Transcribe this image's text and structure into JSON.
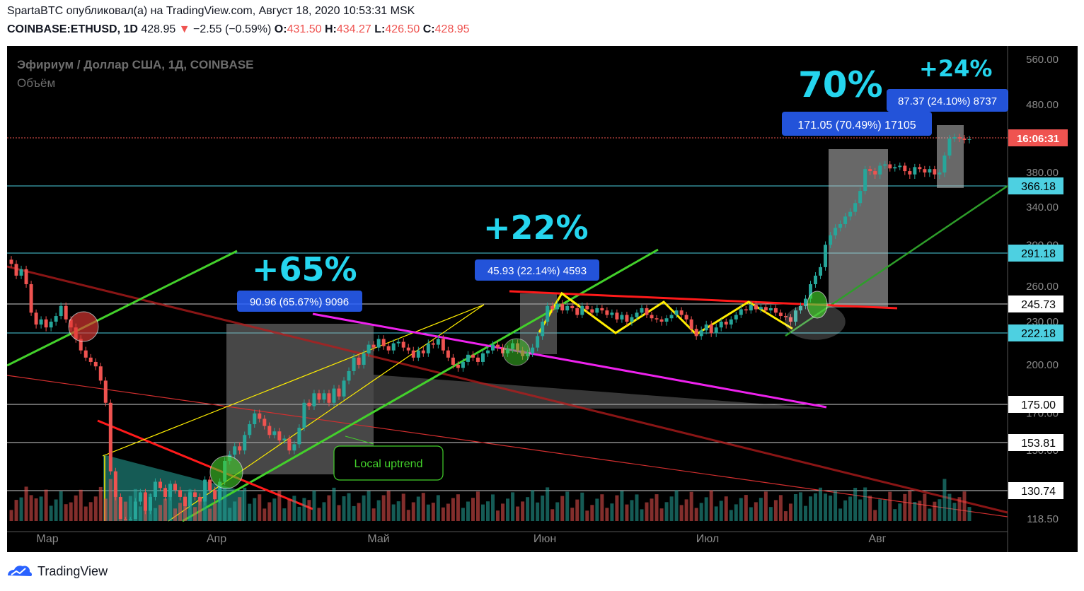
{
  "header": {
    "line1": "SpartaBTC опубликовал(а) на TradingView.com, Август 18, 2020 10:53:31 MSK",
    "symbol": "COINBASE:ETHUSD, 1D",
    "last": "428.95",
    "arrow": "▼",
    "change": "−2.55 (−0.59%)",
    "o_label": "O:",
    "o_value": "431.50",
    "h_label": "H:",
    "h_value": "434.27",
    "l_label": "L:",
    "l_value": "426.50",
    "c_label": "C:",
    "c_value": "428.95"
  },
  "legend": {
    "title": "Эфириум / Доллар США, 1Д, COINBASE",
    "volume": "Объём"
  },
  "footer": {
    "brand": "TradingView"
  },
  "colors": {
    "up": "#26a69a",
    "down": "#ef5350",
    "background": "#000000",
    "label_box": "#2962ff"
  },
  "chart_data": {
    "type": "candlestick",
    "x_labels": [
      "Мар",
      "Апр",
      "Май",
      "Июн",
      "Июл",
      "Авг"
    ],
    "y_ticks": [
      560.0,
      480.0,
      380.0,
      340.0,
      300.0,
      260.0,
      230.0,
      200.0,
      170.0,
      150.0,
      118.5
    ],
    "horizontal_levels": [
      "366.18",
      "291.18",
      "245.73",
      "222.18",
      "175.00",
      "153.81",
      "130.74"
    ],
    "countdown": "16:06:31",
    "last_price": 428.95,
    "big_labels": [
      "+65%",
      "+22%",
      "70%",
      "+24%"
    ],
    "measure_labels": [
      "90.96 (65.67%) 9096",
      "45.93 (22.14%) 4593",
      "171.05 (70.49%) 17105",
      "87.37 (24.10%) 8737"
    ],
    "annotation": "Local uptrend",
    "candle_closes": [
      281,
      270,
      276,
      262,
      238,
      228,
      232,
      226,
      230,
      235,
      244,
      232,
      226,
      218,
      210,
      205,
      202,
      199,
      190,
      176,
      140,
      128,
      118,
      112,
      118,
      126,
      130,
      122,
      128,
      135,
      132,
      128,
      134,
      131,
      128,
      124,
      130,
      128,
      126,
      136,
      131,
      127,
      135,
      145,
      148,
      152,
      150,
      158,
      164,
      170,
      167,
      163,
      158,
      160,
      155,
      156,
      150,
      153,
      162,
      176,
      174,
      182,
      178,
      182,
      176,
      185,
      180,
      190,
      196,
      205,
      200,
      208,
      214,
      212,
      218,
      213,
      210,
      215,
      216,
      212,
      210,
      205,
      210,
      208,
      215,
      214,
      218,
      210,
      205,
      200,
      198,
      202,
      207,
      205,
      202,
      208,
      210,
      214,
      212,
      208,
      211,
      215,
      210,
      206,
      208,
      212,
      220,
      230,
      244,
      241,
      246,
      240,
      244,
      242,
      236,
      244,
      241,
      238,
      242,
      240,
      236,
      238,
      232,
      236,
      230,
      234,
      238,
      242,
      236,
      233,
      232,
      230,
      233,
      236,
      240,
      236,
      232,
      225,
      220,
      224,
      228,
      222,
      226,
      230,
      228,
      232,
      236,
      241,
      240,
      245,
      241,
      243,
      240,
      242,
      238,
      235,
      234,
      230,
      240,
      244,
      250,
      262,
      270,
      278,
      300,
      310,
      318,
      322,
      330,
      335,
      345,
      360,
      385,
      382,
      378,
      390,
      392,
      386,
      388,
      390,
      382,
      378,
      388,
      385,
      380,
      385,
      378,
      380,
      405,
      430,
      432,
      430,
      428,
      429
    ]
  }
}
